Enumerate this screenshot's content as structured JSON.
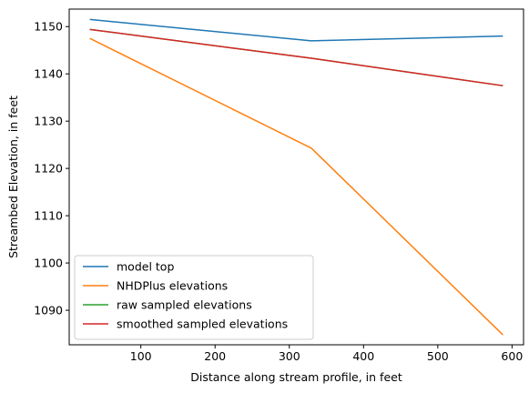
{
  "chart_data": {
    "type": "line",
    "title": "",
    "xlabel": "Distance along stream profile, in feet",
    "ylabel": "Streambed Elevation, in feet",
    "xlim": [
      3.5,
      615.5
    ],
    "ylim": [
      1082.7,
      1153.7
    ],
    "xticks": [
      100,
      200,
      300,
      400,
      500,
      600
    ],
    "yticks": [
      1090,
      1100,
      1110,
      1120,
      1130,
      1140,
      1150
    ],
    "grid": false,
    "legend_position": "lower-left",
    "series": [
      {
        "name": "model top",
        "color": "#1f77b4",
        "x": [
          31.3,
          329.6,
          587.7
        ],
        "y": [
          1151.5,
          1147.0,
          1148.0
        ]
      },
      {
        "name": "NHDPlus elevations",
        "color": "#ff7f0e",
        "x": [
          31.3,
          329.6,
          587.7
        ],
        "y": [
          1147.5,
          1124.3,
          1084.8
        ]
      },
      {
        "name": "raw sampled elevations",
        "color": "#2ca02c",
        "x": [
          31.3,
          329.6,
          587.7
        ],
        "y": [
          1149.4,
          1143.3,
          1137.5
        ]
      },
      {
        "name": "smoothed sampled elevations",
        "color": "#d62728",
        "x": [
          31.3,
          329.6,
          587.7
        ],
        "y": [
          1149.4,
          1143.3,
          1137.5
        ]
      }
    ]
  }
}
